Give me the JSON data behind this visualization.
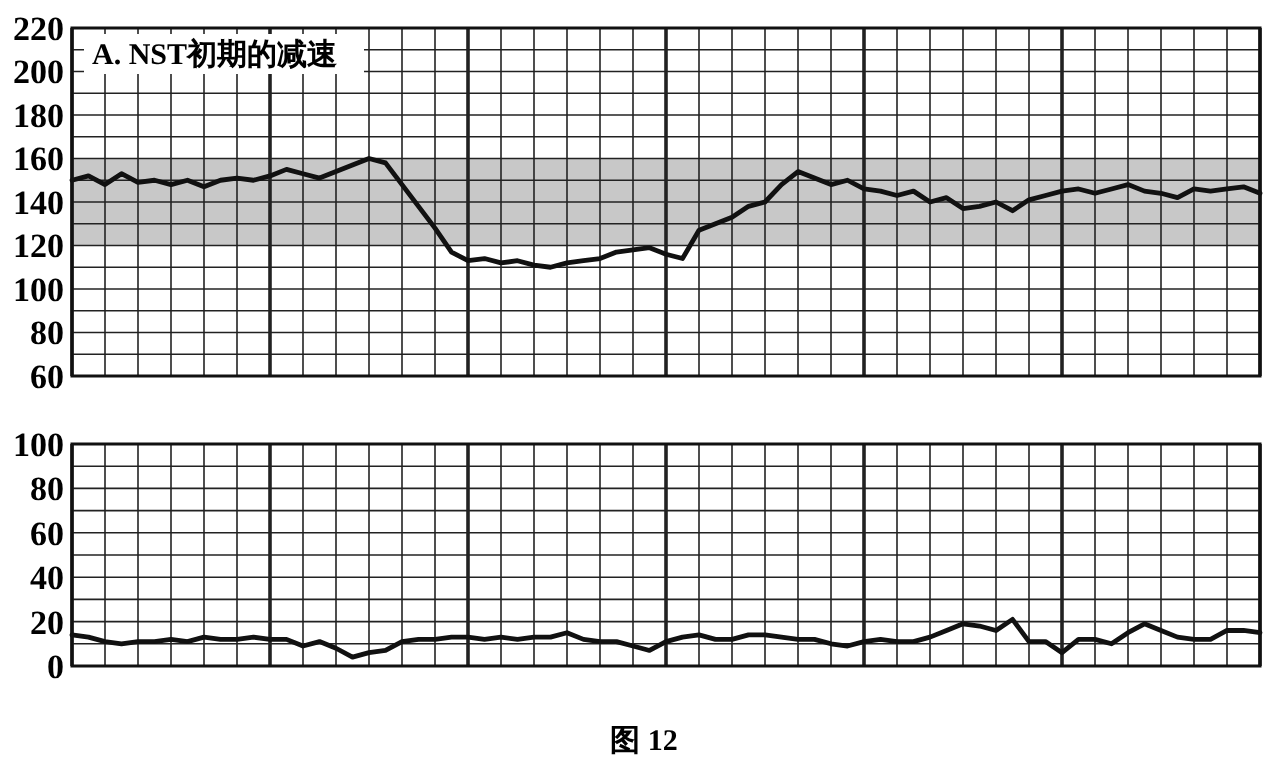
{
  "chart_data": [
    {
      "type": "line",
      "title": "A. NST初期的减速",
      "categories": [
        null,
        null,
        null,
        null,
        null,
        null,
        null,
        null,
        null,
        null,
        null,
        null,
        null,
        null,
        null,
        null,
        null,
        null,
        null,
        null,
        null,
        null,
        null,
        null,
        null,
        null,
        null,
        null,
        null,
        null,
        null,
        null,
        null,
        null,
        null,
        null,
        null,
        null,
        null,
        null,
        null,
        null,
        null,
        null,
        null,
        null,
        null,
        null,
        null,
        null,
        null,
        null,
        null,
        null,
        null,
        null,
        null,
        null,
        null,
        null,
        null,
        null,
        null,
        null,
        null,
        null,
        null,
        null,
        null,
        null,
        null,
        null,
        null
      ],
      "series": [
        {
          "color": "#111111",
          "values": [
            150,
            152,
            148,
            153,
            149,
            150,
            148,
            150,
            147,
            150,
            151,
            150,
            152,
            155,
            153,
            151,
            154,
            157,
            160,
            158,
            148,
            138,
            128,
            117,
            113,
            114,
            112,
            113,
            111,
            110,
            112,
            113,
            114,
            117,
            118,
            119,
            116,
            114,
            127,
            130,
            133,
            138,
            140,
            148,
            154,
            151,
            148,
            150,
            146,
            145,
            143,
            145,
            140,
            142,
            137,
            138,
            140,
            136,
            141,
            143,
            145,
            146,
            144,
            146,
            148,
            145,
            144,
            142,
            146,
            145,
            146,
            147,
            144
          ]
        }
      ],
      "ylim": [
        60,
        220
      ],
      "yticks": [
        60,
        {
          "value": 70,
          "label": null
        },
        80,
        {
          "value": 90,
          "label": null
        },
        100,
        {
          "value": 110,
          "label": null
        },
        120,
        {
          "value": 130,
          "label": null
        },
        140,
        {
          "value": 150,
          "label": null
        },
        160,
        {
          "value": 170,
          "label": null
        },
        180,
        {
          "value": 190,
          "label": null
        },
        200,
        {
          "value": 210,
          "label": null
        },
        220
      ],
      "bands": [
        {
          "axis": "y",
          "from": 120,
          "to": 160,
          "color": "#c8c8c8"
        }
      ],
      "grid": true,
      "tick_labels": "y"
    },
    {
      "type": "line",
      "categories": [
        null,
        null,
        null,
        null,
        null,
        null,
        null,
        null,
        null,
        null,
        null,
        null,
        null,
        null,
        null,
        null,
        null,
        null,
        null,
        null,
        null,
        null,
        null,
        null,
        null,
        null,
        null,
        null,
        null,
        null,
        null,
        null,
        null,
        null,
        null,
        null,
        null,
        null,
        null,
        null,
        null,
        null,
        null,
        null,
        null,
        null,
        null,
        null,
        null,
        null,
        null,
        null,
        null,
        null,
        null,
        null,
        null,
        null,
        null,
        null,
        null,
        null,
        null,
        null,
        null,
        null,
        null,
        null,
        null,
        null,
        null,
        null,
        null
      ],
      "series": [
        {
          "color": "#111111",
          "values": [
            14,
            13,
            11,
            10,
            11,
            11,
            12,
            11,
            13,
            12,
            12,
            13,
            12,
            12,
            9,
            11,
            8,
            4,
            6,
            7,
            11,
            12,
            12,
            13,
            13,
            12,
            13,
            12,
            13,
            13,
            15,
            12,
            11,
            11,
            9,
            7,
            11,
            13,
            14,
            12,
            12,
            14,
            14,
            13,
            12,
            12,
            10,
            9,
            11,
            12,
            11,
            11,
            13,
            16,
            19,
            18,
            16,
            21,
            11,
            11,
            6,
            12,
            12,
            10,
            15,
            19,
            16,
            13,
            12,
            12,
            16,
            16,
            15
          ]
        }
      ],
      "ylim": [
        0,
        100
      ],
      "yticks": [
        0,
        {
          "value": 10,
          "label": null
        },
        20,
        {
          "value": 30,
          "label": null
        },
        40,
        {
          "value": 50,
          "label": null
        },
        60,
        {
          "value": 70,
          "label": null
        },
        80,
        {
          "value": 90,
          "label": null
        },
        100
      ],
      "grid": true,
      "tick_labels": "y",
      "annotations": [
        "图 12"
      ]
    }
  ]
}
